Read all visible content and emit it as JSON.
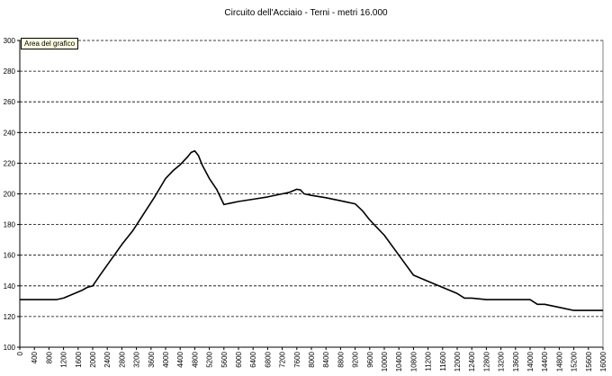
{
  "chart_data": {
    "type": "line",
    "title": "Circuito dell'Acciaio - Terni - metri 16.000",
    "area_label": "Area del grafico",
    "xlabel": "",
    "ylabel": "",
    "xlim": [
      0,
      16000
    ],
    "ylim": [
      100,
      300
    ],
    "grid": "horizontal dashed",
    "x_ticks": [
      0,
      400,
      800,
      1200,
      1600,
      2000,
      2400,
      2800,
      3200,
      3600,
      4000,
      4400,
      4800,
      5200,
      5600,
      6000,
      6400,
      6800,
      7200,
      7600,
      8000,
      8400,
      8800,
      9200,
      9600,
      10000,
      10400,
      10800,
      11200,
      11600,
      12000,
      12400,
      12800,
      13200,
      13600,
      14000,
      14400,
      14800,
      15200,
      15600,
      16000
    ],
    "y_ticks": [
      100,
      120,
      140,
      160,
      180,
      200,
      220,
      240,
      260,
      280,
      300
    ],
    "series": [
      {
        "color": "#000000",
        "x": [
          0,
          1000,
          1200,
          1500,
          1700,
          1850,
          2000,
          2200,
          2500,
          2800,
          3100,
          3400,
          3700,
          4000,
          4200,
          4400,
          4600,
          4700,
          4800,
          4900,
          5000,
          5200,
          5400,
          5600,
          5800,
          6000,
          6400,
          6800,
          7200,
          7400,
          7600,
          7700,
          7800,
          8000,
          8400,
          8800,
          9200,
          9400,
          9600,
          10000,
          10400,
          10800,
          11200,
          11600,
          12000,
          12200,
          12400,
          12800,
          13200,
          13600,
          14000,
          14200,
          14400,
          14800,
          15200,
          15600,
          16000
        ],
        "y": [
          131,
          131,
          132,
          135,
          137,
          139,
          140,
          147,
          157,
          167,
          176,
          187,
          198,
          210,
          215,
          219,
          224,
          227,
          228,
          225,
          219,
          210,
          203,
          193,
          194,
          195,
          196.5,
          198,
          200,
          201,
          203,
          202.5,
          200,
          199,
          197.5,
          195.5,
          193.5,
          189,
          183,
          173,
          160,
          147,
          143,
          139,
          135,
          132,
          132,
          131,
          131,
          131,
          131,
          128,
          128,
          126,
          124,
          124,
          124
        ]
      }
    ]
  }
}
